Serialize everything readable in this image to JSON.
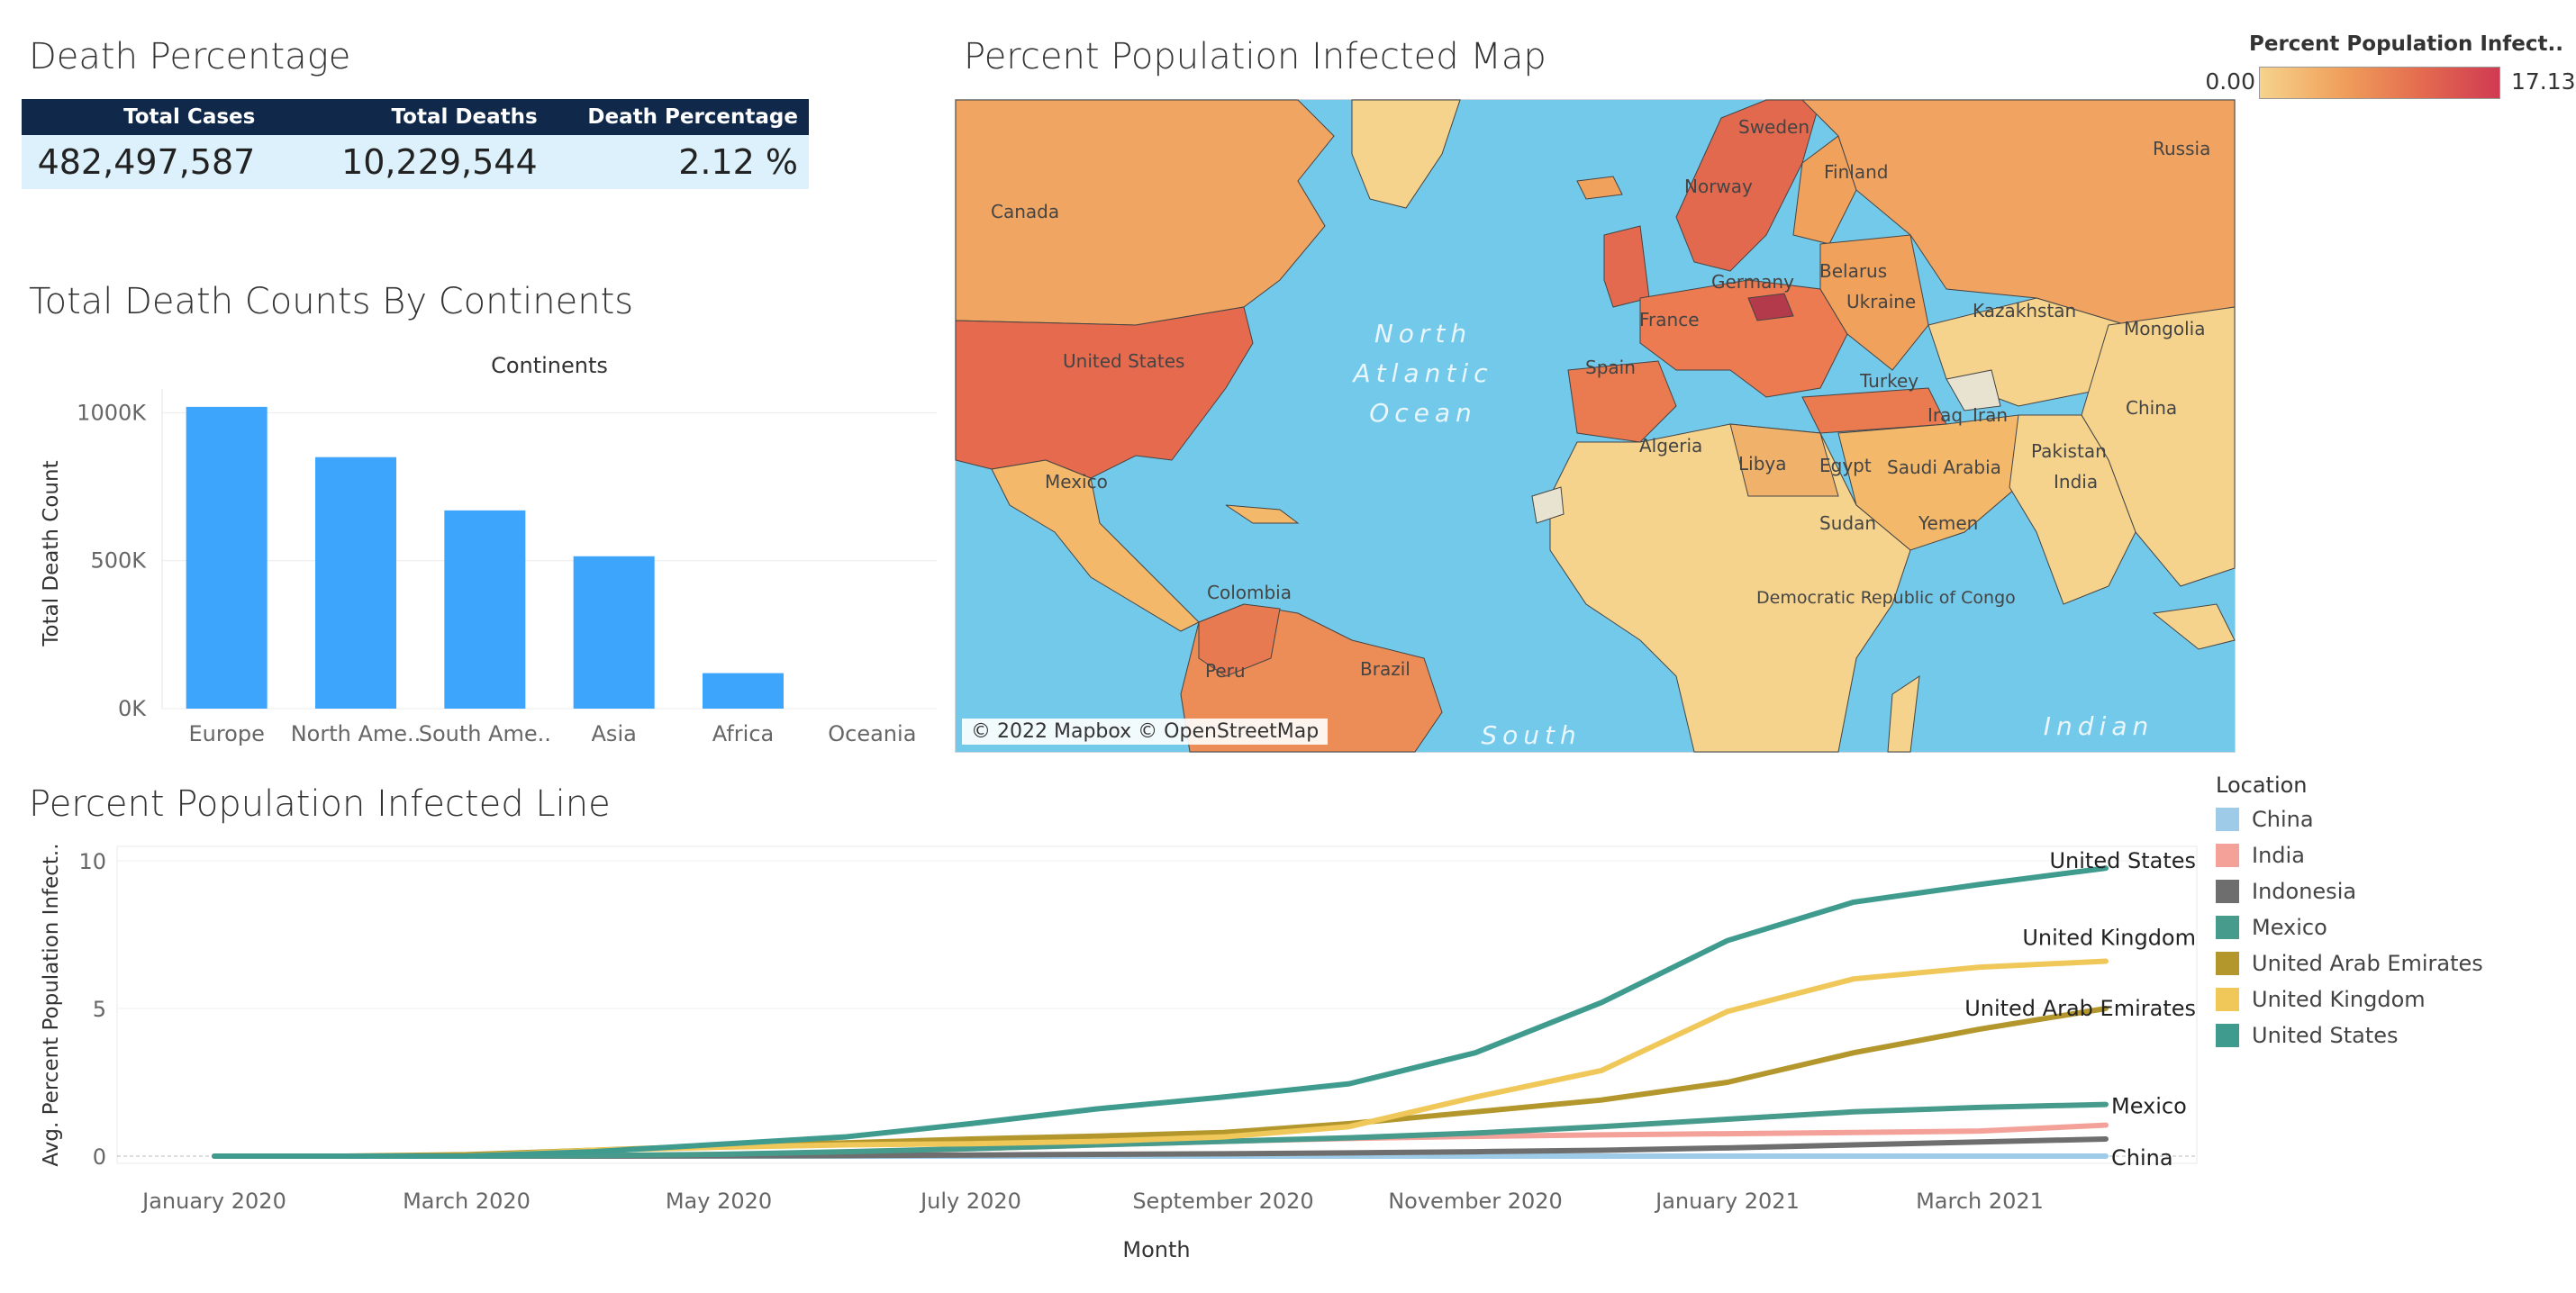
{
  "death_section": {
    "title": "Death Percentage",
    "headers": [
      "Total Cases",
      "Total Deaths",
      "Death Percentage"
    ],
    "values": [
      "482,497,587",
      "10,229,544",
      "2.12 %"
    ]
  },
  "bar_section": {
    "title": "Total Death Counts By Continents"
  },
  "map_section": {
    "title": "Percent Population Infected Map",
    "legend_title": "Percent Population Infect..",
    "legend_min": "0.00",
    "legend_max": "17.13",
    "attribution": "© 2022 Mapbox © OpenStreetMap",
    "gradient_colors": [
      "#f6d38c",
      "#f0a15c",
      "#e46c4f",
      "#d03a52"
    ],
    "ocean_label_1": [
      "North",
      "Atlantic",
      "Ocean"
    ],
    "ocean_label_2": [
      "South"
    ],
    "ocean_label_3": [
      "Indian"
    ],
    "place_labels": [
      "Canada",
      "United States",
      "Mexico",
      "Colombia",
      "Peru",
      "Brazil",
      "Russia",
      "Kazakhstan",
      "Mongolia",
      "China",
      "India",
      "Iran",
      "Iraq",
      "Turkey",
      "Saudi Arabia",
      "Egypt",
      "Libya",
      "Algeria",
      "Sudan",
      "Yemen",
      "Democratic Republic of Congo",
      "Spain",
      "France",
      "Germany",
      "Ukraine",
      "Belarus",
      "Sweden",
      "Finland",
      "Norway",
      "Pakistan"
    ]
  },
  "line_section": {
    "title": "Percent Population Infected Line"
  },
  "chart_data": [
    {
      "type": "bar",
      "title": "Continents",
      "categories": [
        "Europe",
        "North Ame..",
        "South Ame..",
        "Asia",
        "Africa",
        "Oceania"
      ],
      "values": [
        1020000,
        850000,
        670000,
        515000,
        120000,
        0
      ],
      "ylabel": "Total Death Count",
      "ylim": [
        0,
        1050000
      ],
      "yticks": [
        "0K",
        "500K",
        "1000K"
      ],
      "color": "#3ea5fd",
      "grid": true
    },
    {
      "type": "line",
      "title": "",
      "xlabel": "Month",
      "ylabel": "Avg. Percent Population Infect..",
      "x": [
        "2020-01",
        "2020-02",
        "2020-03",
        "2020-04",
        "2020-05",
        "2020-06",
        "2020-07",
        "2020-08",
        "2020-09",
        "2020-10",
        "2020-11",
        "2020-12",
        "2021-01",
        "2021-02",
        "2021-03",
        "2021-04"
      ],
      "xtick_labels": [
        "January 2020",
        "March 2020",
        "May 2020",
        "July 2020",
        "September 2020",
        "November 2020",
        "January 2021",
        "March 2021"
      ],
      "ylim": [
        0,
        10
      ],
      "yticks": [
        "0",
        "5",
        "10"
      ],
      "legend_title": "Location",
      "legend_position": "right",
      "series": [
        {
          "name": "China",
          "color": "#9dcbe8",
          "values": [
            0,
            0,
            0,
            0,
            0,
            0,
            0,
            0,
            0,
            0,
            0,
            0,
            0,
            0,
            0,
            0
          ]
        },
        {
          "name": "India",
          "color": "#f4a199",
          "values": [
            0,
            0,
            0,
            0.01,
            0.05,
            0.12,
            0.25,
            0.38,
            0.5,
            0.6,
            0.67,
            0.72,
            0.76,
            0.8,
            0.85,
            1.05
          ]
        },
        {
          "name": "Indonesia",
          "color": "#6e6e6e",
          "values": [
            0,
            0,
            0,
            0,
            0.01,
            0.02,
            0.04,
            0.06,
            0.08,
            0.11,
            0.15,
            0.2,
            0.28,
            0.38,
            0.48,
            0.58
          ]
        },
        {
          "name": "Mexico",
          "color": "#479b8d",
          "values": [
            0,
            0,
            0,
            0.02,
            0.06,
            0.15,
            0.25,
            0.38,
            0.5,
            0.62,
            0.78,
            1.0,
            1.25,
            1.5,
            1.65,
            1.75
          ]
        },
        {
          "name": "United Arab Emirates",
          "color": "#b3972c",
          "values": [
            0,
            0,
            0.05,
            0.2,
            0.35,
            0.45,
            0.58,
            0.68,
            0.8,
            1.1,
            1.5,
            1.9,
            2.5,
            3.5,
            4.3,
            5.0
          ]
        },
        {
          "name": "United Kingdom",
          "color": "#f0c85a",
          "values": [
            0,
            0,
            0,
            0.2,
            0.3,
            0.38,
            0.42,
            0.5,
            0.65,
            1.0,
            2.0,
            2.9,
            4.9,
            6.0,
            6.4,
            6.6
          ]
        },
        {
          "name": "United States",
          "color": "#3e9b8e",
          "values": [
            0,
            0,
            0,
            0.15,
            0.4,
            0.65,
            1.1,
            1.6,
            2.0,
            2.45,
            3.5,
            5.2,
            7.3,
            8.6,
            9.2,
            9.75
          ]
        }
      ],
      "end_labels": [
        "United States",
        "United Kingdom",
        "United Arab Emirates",
        "Mexico",
        "China"
      ]
    }
  ]
}
